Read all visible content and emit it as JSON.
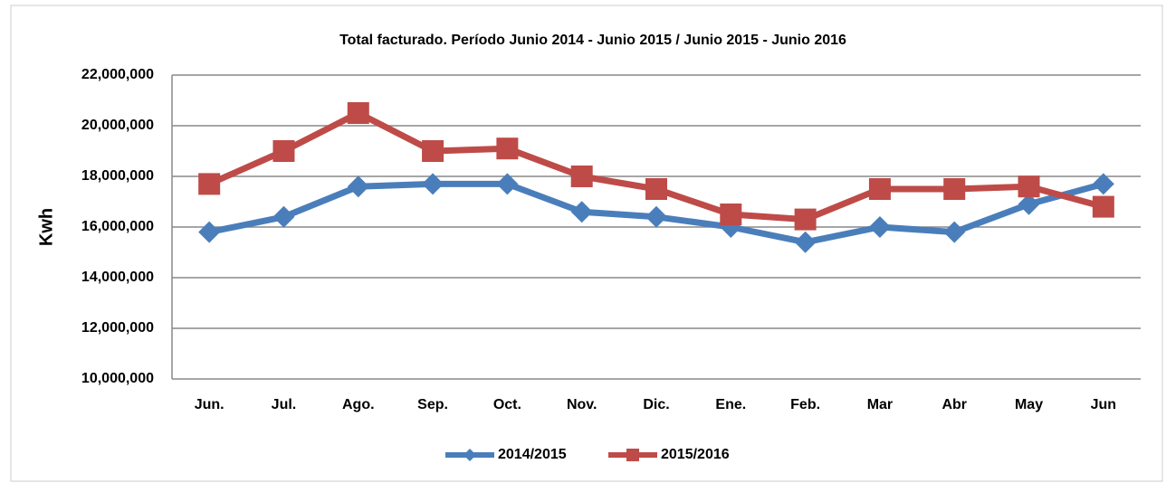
{
  "chart_data": {
    "type": "line",
    "title": "Total facturado. Período Junio 2014 - Junio 2015 / Junio 2015 - Junio 2016",
    "y_label": "Kwh",
    "categories": [
      "Jun.",
      "Jul.",
      "Ago.",
      "Sep.",
      "Oct.",
      "Nov.",
      "Dic.",
      "Ene.",
      "Feb.",
      "Mar",
      "Abr",
      "May",
      "Jun"
    ],
    "series": [
      {
        "name": "2014/2015",
        "color": "#4a7ebb",
        "marker": "diamond",
        "values": [
          15800000,
          16400000,
          17600000,
          17700000,
          17700000,
          16600000,
          16400000,
          16000000,
          15400000,
          16000000,
          15800000,
          16900000,
          17700000
        ]
      },
      {
        "name": "2015/2016",
        "color": "#be4b48",
        "marker": "square",
        "values": [
          17700000,
          19000000,
          20500000,
          19000000,
          19100000,
          18000000,
          17500000,
          16500000,
          16300000,
          17500000,
          17500000,
          17600000,
          16800000
        ]
      }
    ],
    "ylim": [
      10000000,
      22000000
    ],
    "yticks": [
      {
        "value": 10000000,
        "label": "10,000,000"
      },
      {
        "value": 12000000,
        "label": "12,000,000"
      },
      {
        "value": 14000000,
        "label": "14,000,000"
      },
      {
        "value": 16000000,
        "label": "16,000,000"
      },
      {
        "value": 18000000,
        "label": "18,000,000"
      },
      {
        "value": 20000000,
        "label": "20,000,000"
      },
      {
        "value": 22000000,
        "label": "22,000,000"
      }
    ],
    "grid": true,
    "legend": "bottom"
  }
}
